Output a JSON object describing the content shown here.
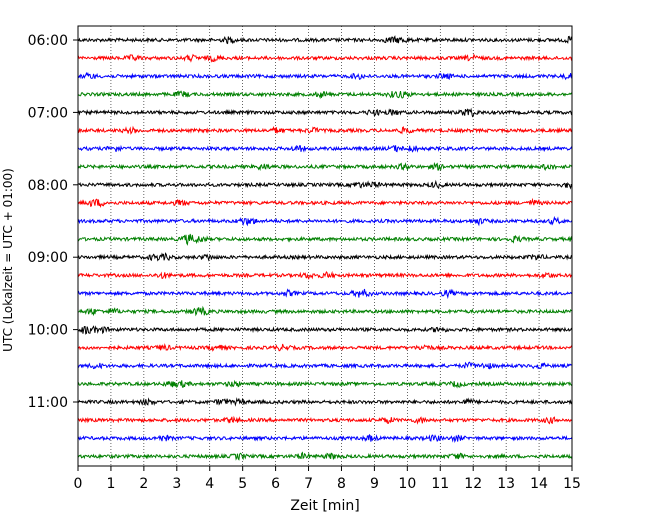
{
  "chart_data": {
    "type": "line",
    "title": "",
    "xlabel": "Zeit  [min]",
    "ylabel": "UTC (Lokalzeit = UTC + 01:00)",
    "xlim": [
      0,
      15
    ],
    "x_ticks": [
      "0",
      "1",
      "2",
      "3",
      "4",
      "5",
      "6",
      "7",
      "8",
      "9",
      "10",
      "11",
      "12",
      "13",
      "14",
      "15"
    ],
    "grid": "vertical dotted",
    "y_ticks": [
      {
        "row": 0,
        "label": "06:00"
      },
      {
        "row": 4,
        "label": "07:00"
      },
      {
        "row": 8,
        "label": "08:00"
      },
      {
        "row": 12,
        "label": "09:00"
      },
      {
        "row": 16,
        "label": "10:00"
      },
      {
        "row": 20,
        "label": "11:00"
      }
    ],
    "trace_colors": [
      "#000000",
      "#ff0000",
      "#0000ff",
      "#008000"
    ],
    "series": [
      {
        "start": "06:00",
        "color": "#000000"
      },
      {
        "start": "06:15",
        "color": "#ff0000"
      },
      {
        "start": "06:30",
        "color": "#0000ff"
      },
      {
        "start": "06:45",
        "color": "#008000"
      },
      {
        "start": "07:00",
        "color": "#000000"
      },
      {
        "start": "07:15",
        "color": "#ff0000"
      },
      {
        "start": "07:30",
        "color": "#0000ff"
      },
      {
        "start": "07:45",
        "color": "#008000"
      },
      {
        "start": "08:00",
        "color": "#000000"
      },
      {
        "start": "08:15",
        "color": "#ff0000"
      },
      {
        "start": "08:30",
        "color": "#0000ff"
      },
      {
        "start": "08:45",
        "color": "#008000"
      },
      {
        "start": "09:00",
        "color": "#000000"
      },
      {
        "start": "09:15",
        "color": "#ff0000"
      },
      {
        "start": "09:30",
        "color": "#0000ff"
      },
      {
        "start": "09:45",
        "color": "#008000"
      },
      {
        "start": "10:00",
        "color": "#000000"
      },
      {
        "start": "10:15",
        "color": "#ff0000"
      },
      {
        "start": "10:30",
        "color": "#0000ff"
      },
      {
        "start": "10:45",
        "color": "#008000"
      },
      {
        "start": "11:00",
        "color": "#000000"
      },
      {
        "start": "11:15",
        "color": "#ff0000"
      },
      {
        "start": "11:30",
        "color": "#0000ff"
      },
      {
        "start": "11:45",
        "color": "#008000"
      }
    ]
  }
}
